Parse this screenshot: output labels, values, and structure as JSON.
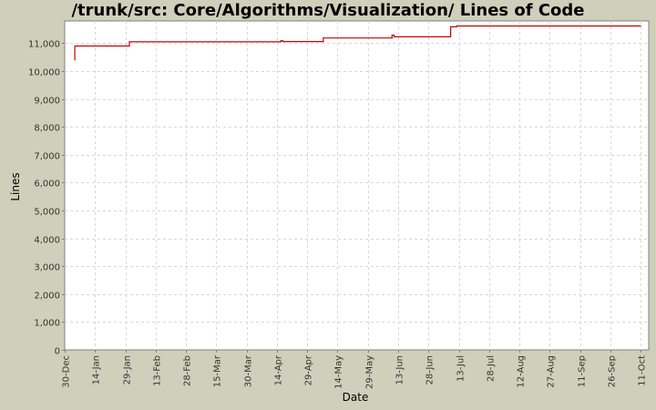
{
  "chart_data": {
    "type": "line",
    "title": "/trunk/src: Core/Algorithms/Visualization/ Lines of Code",
    "xlabel": "Date",
    "ylabel": "Lines",
    "ylim": [
      0,
      11800
    ],
    "yticks": [
      0,
      1000,
      2000,
      3000,
      4000,
      5000,
      6000,
      7000,
      8000,
      9000,
      10000,
      11000
    ],
    "ytick_labels": [
      "0",
      "1,000",
      "2,000",
      "3,000",
      "4,000",
      "5,000",
      "6,000",
      "7,000",
      "8,000",
      "9,000",
      "10,000",
      "11,000"
    ],
    "xlim": [
      "30-Dec",
      "15-Oct"
    ],
    "xtick_labels": [
      "30-Dec",
      "14-Jan",
      "29-Jan",
      "13-Feb",
      "28-Feb",
      "15-Mar",
      "30-Mar",
      "14-Apr",
      "29-Apr",
      "14-May",
      "29-May",
      "13-Jun",
      "28-Jun",
      "13-Jul",
      "28-Jul",
      "12-Aug",
      "27-Aug",
      "11-Sep",
      "26-Sep",
      "11-Oct"
    ],
    "grid": true,
    "line_color": "#cc0000",
    "series": [
      {
        "x": [
          "4-Jan",
          "4-Jan",
          "31-Jan",
          "31-Jan",
          "16-Apr",
          "16-Apr",
          "17-Apr",
          "17-Apr",
          "7-May",
          "7-May",
          "10-Jun",
          "10-Jun",
          "11-Jun",
          "11-Jun",
          "9-Jul",
          "9-Jul",
          "12-Jul",
          "12-Jul",
          "11-Oct"
        ],
        "y": [
          10400,
          10900,
          10900,
          11050,
          11050,
          11090,
          11090,
          11060,
          11060,
          11190,
          11190,
          11290,
          11290,
          11230,
          11230,
          11590,
          11590,
          11620,
          11620
        ]
      }
    ]
  }
}
